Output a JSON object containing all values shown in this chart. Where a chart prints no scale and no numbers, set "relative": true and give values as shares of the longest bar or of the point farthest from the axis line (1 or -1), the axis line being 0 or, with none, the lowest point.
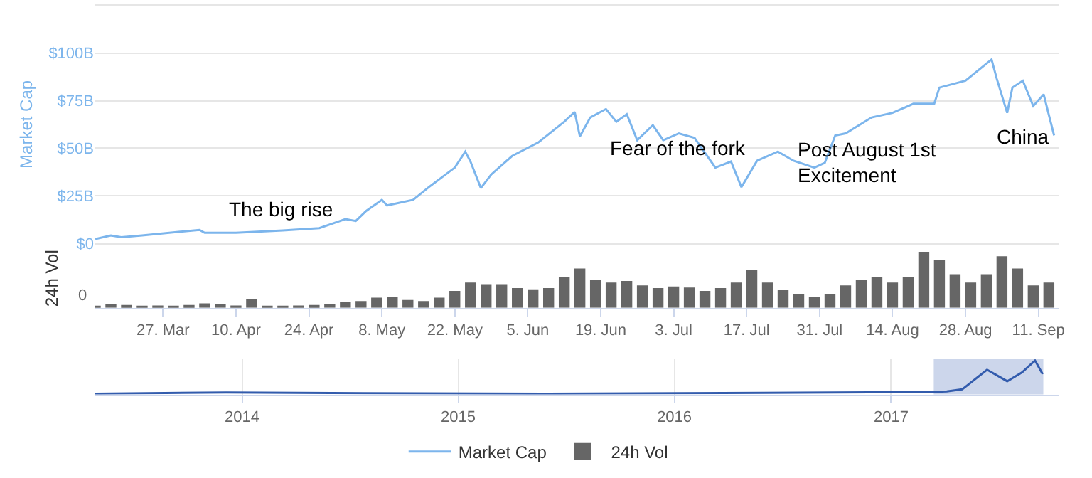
{
  "chart_data": [
    {
      "type": "line",
      "ylabel": "Market Cap",
      "legend": "bottom",
      "grid": "y",
      "tick_labels": "y",
      "marker": "none",
      "line_style": "solid",
      "xlim": [
        "2017-03-14",
        "2017-09-15"
      ],
      "ylim": [
        0,
        125
      ],
      "yticks": [
        {
          "value": 0,
          "label": "$0"
        },
        {
          "value": 25,
          "label": "$25B"
        },
        {
          "value": 50,
          "label": "$50B"
        },
        {
          "value": 75,
          "label": "$75B"
        },
        {
          "value": 100,
          "label": "$100B"
        },
        {
          "value": 125,
          "label": null
        }
      ],
      "annotations": [
        "The big rise",
        "Fear of the fork",
        "Post August 1st\nExcitement",
        "China"
      ],
      "series": [
        {
          "name": "Market Cap",
          "color": "#7cb5ec",
          "x": [
            "2017-03-14",
            "2017-03-17",
            "2017-03-19",
            "2017-03-23",
            "2017-04-03",
            "2017-04-04",
            "2017-04-10",
            "2017-04-19",
            "2017-04-26",
            "2017-04-29",
            "2017-05-01",
            "2017-05-03",
            "2017-05-05",
            "2017-05-08",
            "2017-05-09",
            "2017-05-14",
            "2017-05-17",
            "2017-05-22",
            "2017-05-24",
            "2017-05-25",
            "2017-05-27",
            "2017-05-29",
            "2017-06-02",
            "2017-06-07",
            "2017-06-12",
            "2017-06-14",
            "2017-06-15",
            "2017-06-17",
            "2017-06-20",
            "2017-06-22",
            "2017-06-24",
            "2017-06-26",
            "2017-06-29",
            "2017-07-01",
            "2017-07-04",
            "2017-07-07",
            "2017-07-11",
            "2017-07-14",
            "2017-07-16",
            "2017-07-19",
            "2017-07-23",
            "2017-07-26",
            "2017-07-30",
            "2017-08-01",
            "2017-08-03",
            "2017-08-05",
            "2017-08-10",
            "2017-08-14",
            "2017-08-18",
            "2017-08-22",
            "2017-08-23",
            "2017-08-28",
            "2017-09-02",
            "2017-09-03",
            "2017-09-05",
            "2017-09-06",
            "2017-09-08",
            "2017-09-10",
            "2017-09-12",
            "2017-09-13",
            "2017-09-14"
          ],
          "values": [
            2.2,
            4.1,
            3.1,
            4.1,
            7.0,
            5.5,
            5.5,
            6.7,
            7.9,
            10.8,
            12.7,
            11.7,
            17,
            22.8,
            19.9,
            22.8,
            29.5,
            39.8,
            48.2,
            43,
            29,
            36.2,
            45.9,
            53,
            63.9,
            69.1,
            56.2,
            66.2,
            70.6,
            63.9,
            67.9,
            54.2,
            62.1,
            54.2,
            57.8,
            55.4,
            39.8,
            43,
            29.5,
            43.4,
            48.2,
            43.4,
            39.8,
            42.3,
            56.7,
            57.8,
            66.2,
            68.6,
            73.4,
            73.4,
            81.9,
            85.5,
            96.7,
            86.6,
            68.6,
            81.9,
            85.5,
            72.2,
            78.3,
            67.5,
            56.7
          ]
        }
      ]
    },
    {
      "type": "bar",
      "ylabel": "24h Vol",
      "relative": true,
      "annotations": [
        "0"
      ],
      "xlim": [
        "2017-03-14",
        "2017-09-15"
      ],
      "xticks": [
        {
          "value": "2017-03-27",
          "label": "27. Mar"
        },
        {
          "value": "2017-04-10",
          "label": "10. Apr"
        },
        {
          "value": "2017-04-24",
          "label": "24. Apr"
        },
        {
          "value": "2017-05-08",
          "label": "8. May"
        },
        {
          "value": "2017-05-22",
          "label": "22. May"
        },
        {
          "value": "2017-06-05",
          "label": "5. Jun"
        },
        {
          "value": "2017-06-19",
          "label": "19. Jun"
        },
        {
          "value": "2017-07-03",
          "label": "3. Jul"
        },
        {
          "value": "2017-07-17",
          "label": "17. Jul"
        },
        {
          "value": "2017-07-31",
          "label": "31. Jul"
        },
        {
          "value": "2017-08-14",
          "label": "14. Aug"
        },
        {
          "value": "2017-08-28",
          "label": "28. Aug"
        },
        {
          "value": "2017-09-11",
          "label": "11. Sep"
        }
      ],
      "series": [
        {
          "name": "24h Vol",
          "color": "#666666",
          "x": [
            "2017-03-14",
            "2017-03-17",
            "2017-03-20",
            "2017-03-23",
            "2017-03-26",
            "2017-03-29",
            "2017-04-01",
            "2017-04-04",
            "2017-04-07",
            "2017-04-10",
            "2017-04-13",
            "2017-04-16",
            "2017-04-19",
            "2017-04-22",
            "2017-04-25",
            "2017-04-28",
            "2017-05-01",
            "2017-05-04",
            "2017-05-07",
            "2017-05-10",
            "2017-05-13",
            "2017-05-16",
            "2017-05-19",
            "2017-05-22",
            "2017-05-25",
            "2017-05-28",
            "2017-05-31",
            "2017-06-03",
            "2017-06-06",
            "2017-06-09",
            "2017-06-12",
            "2017-06-15",
            "2017-06-18",
            "2017-06-21",
            "2017-06-24",
            "2017-06-27",
            "2017-06-30",
            "2017-07-03",
            "2017-07-06",
            "2017-07-09",
            "2017-07-12",
            "2017-07-15",
            "2017-07-18",
            "2017-07-21",
            "2017-07-24",
            "2017-07-27",
            "2017-07-30",
            "2017-08-02",
            "2017-08-05",
            "2017-08-08",
            "2017-08-11",
            "2017-08-14",
            "2017-08-17",
            "2017-08-20",
            "2017-08-23",
            "2017-08-26",
            "2017-08-29",
            "2017-09-01",
            "2017-09-04",
            "2017-09-07",
            "2017-09-10",
            "2017-09-13"
          ],
          "values": [
            0.03,
            0.07,
            0.05,
            0.03,
            0.04,
            0.03,
            0.05,
            0.08,
            0.06,
            0.04,
            0.15,
            0.03,
            0.03,
            0.04,
            0.05,
            0.07,
            0.1,
            0.12,
            0.18,
            0.2,
            0.14,
            0.12,
            0.18,
            0.3,
            0.45,
            0.42,
            0.42,
            0.35,
            0.33,
            0.35,
            0.55,
            0.7,
            0.5,
            0.45,
            0.48,
            0.4,
            0.35,
            0.38,
            0.36,
            0.3,
            0.35,
            0.45,
            0.67,
            0.45,
            0.32,
            0.25,
            0.2,
            0.25,
            0.4,
            0.5,
            0.55,
            0.45,
            0.55,
            1.0,
            0.85,
            0.6,
            0.45,
            0.6,
            0.92,
            0.7,
            0.4,
            0.45
          ]
        }
      ]
    },
    {
      "type": "line",
      "relative": true,
      "tick_labels": "x",
      "grid": "x",
      "marker": "none",
      "xlim": [
        "2013-04-28",
        "2017-10-12"
      ],
      "xticks": [
        {
          "value": "2014-01-01",
          "label": "2014"
        },
        {
          "value": "2015-01-01",
          "label": "2015"
        },
        {
          "value": "2016-01-01",
          "label": "2016"
        },
        {
          "value": "2017-01-01",
          "label": "2017"
        }
      ],
      "bands": [
        {
          "axis": "x",
          "from": "2017-03-14",
          "to": "2017-09-15",
          "color": "#ccd6eb"
        }
      ],
      "series": [
        {
          "color": "#335cad",
          "x": [
            "2013-04-28",
            "2013-12-05",
            "2014-06-01",
            "2015-06-01",
            "2016-06-01",
            "2017-03-01",
            "2017-04-05",
            "2017-05-01",
            "2017-06-12",
            "2017-07-16",
            "2017-08-10",
            "2017-09-01",
            "2017-09-14"
          ],
          "values": [
            0.02,
            0.06,
            0.04,
            0.02,
            0.05,
            0.07,
            0.09,
            0.15,
            0.73,
            0.39,
            0.65,
            1.0,
            0.6
          ]
        }
      ]
    }
  ]
}
